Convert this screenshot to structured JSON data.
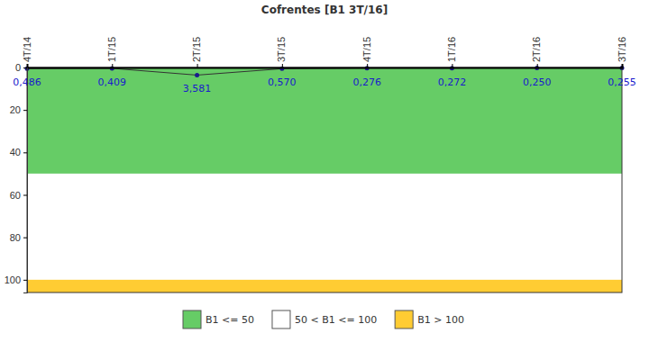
{
  "chart_data": {
    "type": "line",
    "title": "Cofrentes [B1 3T/16]",
    "categories": [
      "4T/14",
      "1T/15",
      "2T/15",
      "3T/15",
      "4T/15",
      "1T/16",
      "2T/16",
      "3T/16"
    ],
    "series": [
      {
        "name": "B1",
        "color": "#333333",
        "marker": "circle",
        "values": [
          0.486,
          0.409,
          3.581,
          0.57,
          0.276,
          0.272,
          0.25,
          0.255
        ],
        "value_labels": [
          "0,486",
          "0,409",
          "3,581",
          "0,570",
          "0,276",
          "0,272",
          "0,250",
          "0,255"
        ]
      }
    ],
    "data_labels": true,
    "ylim": [
      0,
      106
    ],
    "yticks": [
      0,
      20,
      40,
      60,
      80,
      100
    ],
    "bands": [
      {
        "name": "B1 <= 50",
        "from": 0,
        "to": 50,
        "color": "#66cc66"
      },
      {
        "name": "50 < B1 <= 100",
        "from": 50,
        "to": 100,
        "color": "#ffffff"
      },
      {
        "name": "B1 > 100",
        "from": 100,
        "to": 106,
        "color": "#ffcc33"
      }
    ]
  }
}
